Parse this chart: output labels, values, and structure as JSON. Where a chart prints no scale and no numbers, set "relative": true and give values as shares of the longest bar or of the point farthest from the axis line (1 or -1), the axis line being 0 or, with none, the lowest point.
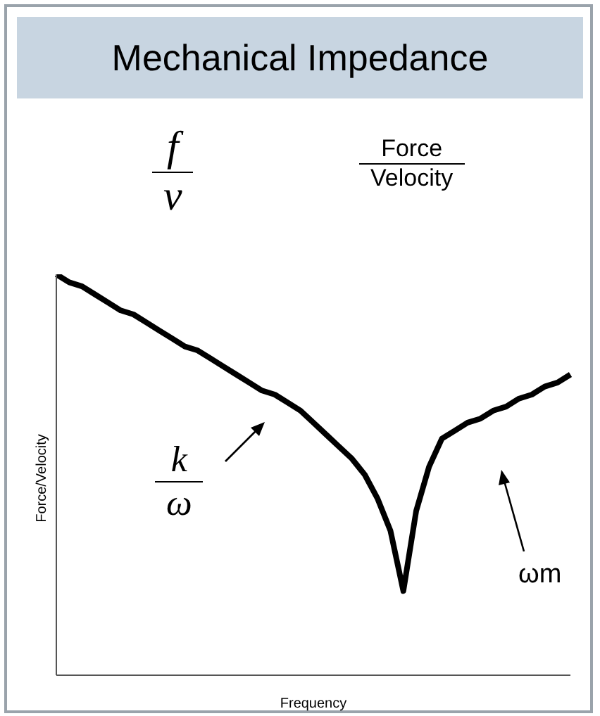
{
  "chart_data": {
    "type": "line",
    "title": "Mechanical Impedance",
    "xlabel": "Frequency",
    "ylabel": "Force/Velocity",
    "relative": true,
    "categories": [
      null,
      null,
      null,
      null,
      null,
      null,
      null,
      null,
      null,
      null,
      null,
      null,
      null,
      null,
      null,
      null,
      null,
      null,
      null,
      null,
      null,
      null,
      null,
      null,
      null,
      null,
      null,
      null,
      null,
      null,
      null,
      null,
      null,
      null,
      null,
      null,
      null,
      null,
      null,
      null,
      null
    ],
    "series": [
      {
        "color": "#000000",
        "values": [
          1,
          0.98,
          0.97,
          0.95,
          0.93,
          0.91,
          0.9,
          0.88,
          0.86,
          0.84,
          0.82,
          0.81,
          0.79,
          0.77,
          0.75,
          0.73,
          0.71,
          0.7,
          0.68,
          0.66,
          0.63,
          0.6,
          0.57,
          0.54,
          0.5,
          0.44,
          0.36,
          0.21,
          0.41,
          0.52,
          0.59,
          0.61,
          0.63,
          0.64,
          0.66,
          0.67,
          0.69,
          0.7,
          0.72,
          0.73,
          0.75
        ]
      }
    ],
    "marker": "none",
    "grid": false,
    "legend": false,
    "annotations": [
      "f",
      "v",
      "Force",
      "Velocity",
      "k",
      "ω",
      "ωm"
    ]
  }
}
